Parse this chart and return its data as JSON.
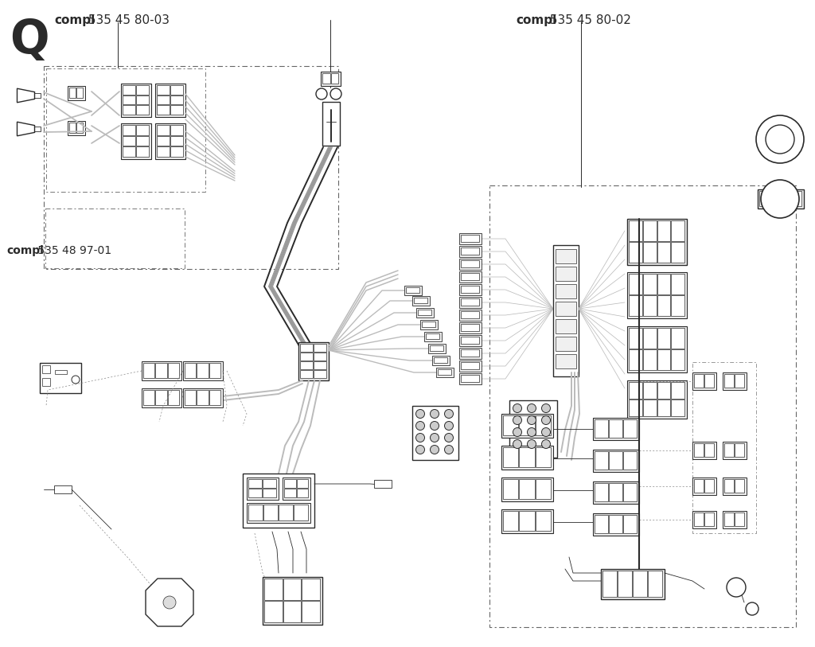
{
  "title": "Q",
  "label1_bold": "compl",
  "label1_rest": " 535 45 80-03",
  "label2_bold": "compl",
  "label2_rest": " 535 45 80-02",
  "label3_bold": "compl",
  "label3_rest": " 535 48 97-01",
  "bg_color": "#ffffff",
  "line_color": "#2a2a2a",
  "gray_color": "#888888",
  "light_gray": "#bbbbbb",
  "lw_main": 1.0,
  "lw_thick": 2.5,
  "lw_thin": 0.6,
  "lw_wire": 1.4
}
